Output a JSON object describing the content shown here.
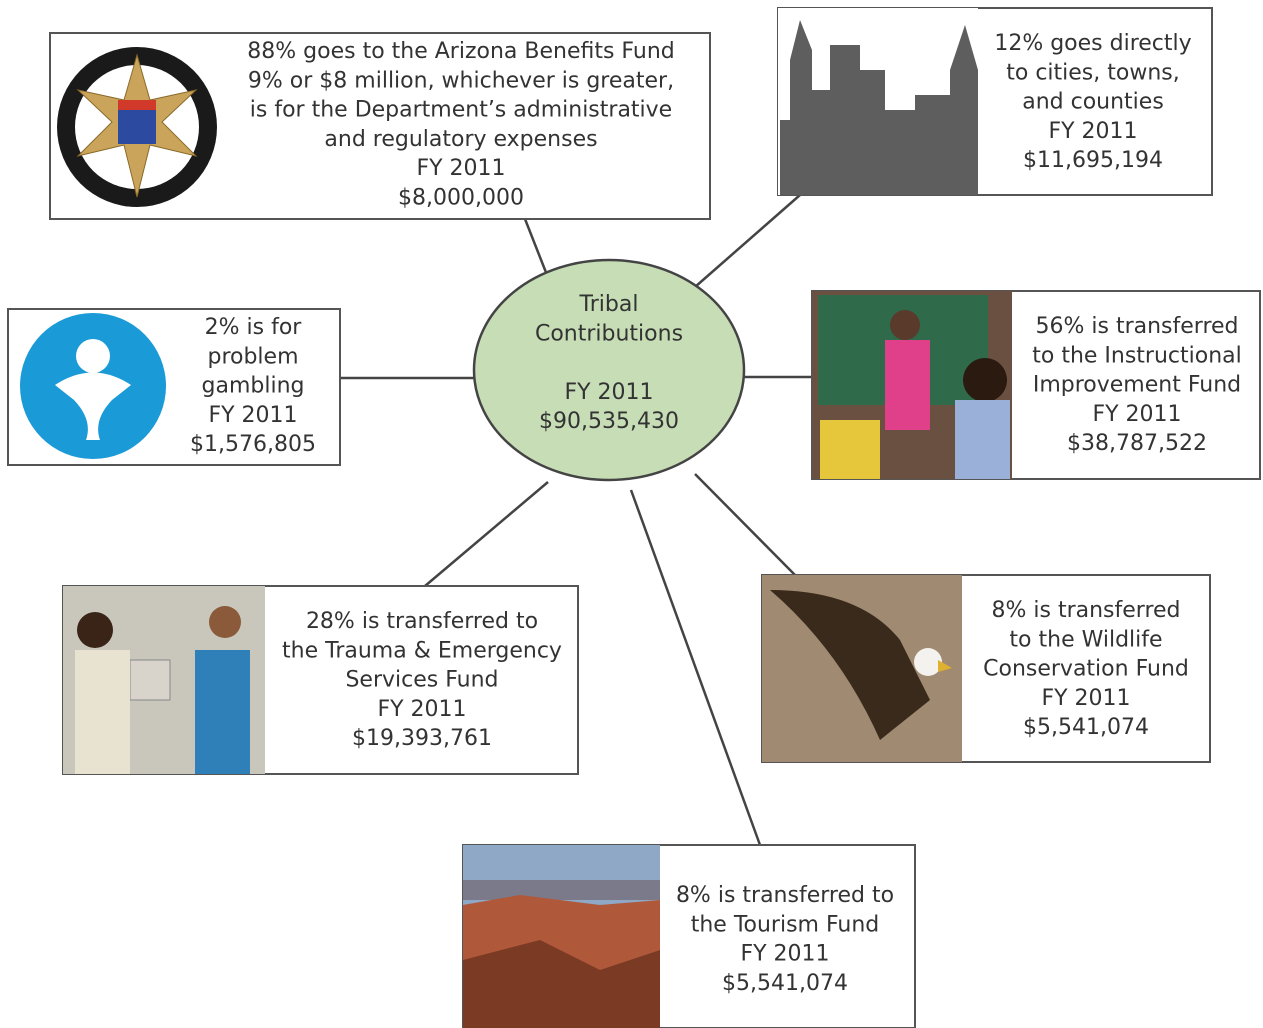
{
  "center": {
    "lines": [
      "Tribal",
      "Contributions"
    ],
    "year": "FY 2011",
    "amount": "$90,535,430"
  },
  "nodes": [
    {
      "lines": [
        "88% goes to the Arizona Benefits Fund",
        "9% or $8 million, whichever is greater,",
        "is for the Department’s administrative",
        "and regulatory expenses"
      ],
      "year": "FY 2011",
      "amount": "$8,000,000"
    },
    {
      "lines": [
        "12% goes directly",
        "to cities, towns,",
        "and counties"
      ],
      "year": "FY 2011",
      "amount": "$11,695,194"
    },
    {
      "lines": [
        "2% is for",
        "problem",
        "gambling"
      ],
      "year": "FY 2011",
      "amount": "$1,576,805"
    },
    {
      "lines": [
        "56% is transferred",
        "to the Instructional",
        "Improvement Fund"
      ],
      "year": "FY 2011",
      "amount": "$38,787,522"
    },
    {
      "lines": [
        "28% is transferred to",
        "the Trauma & Emergency",
        "Services Fund"
      ],
      "year": "FY 2011",
      "amount": "$19,393,761"
    },
    {
      "lines": [
        "8% is transferred",
        "to the Wildlife",
        "Conservation Fund"
      ],
      "year": "FY 2011",
      "amount": "$5,541,074"
    },
    {
      "lines": [
        "8% is transferred to",
        "the Tourism Fund"
      ],
      "year": "FY 2011",
      "amount": "$5,541,074"
    }
  ]
}
